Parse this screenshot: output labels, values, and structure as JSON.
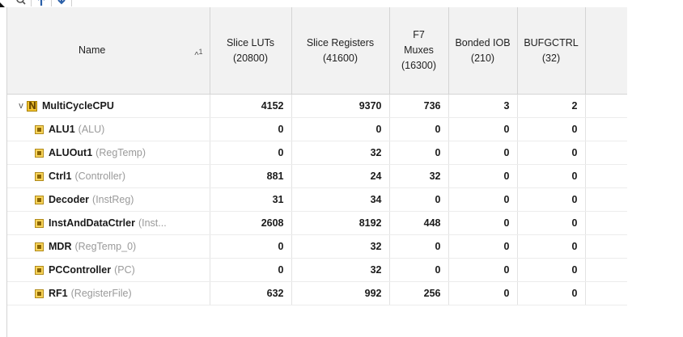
{
  "toolbar": {
    "buttons": [
      {
        "icon": "search-icon"
      },
      {
        "icon": "sort-up-icon"
      },
      {
        "icon": "sort-down-icon"
      }
    ]
  },
  "table": {
    "sort": {
      "direction_symbol": "^",
      "priority": "1"
    },
    "columns": [
      {
        "id": "name",
        "label": "Name",
        "sub": ""
      },
      {
        "id": "lut",
        "label": "Slice LUTs",
        "sub": "(20800)"
      },
      {
        "id": "reg",
        "label": "Slice Registers",
        "sub": "(41600)"
      },
      {
        "id": "f7",
        "label": "F7 Muxes",
        "sub": "(16300)"
      },
      {
        "id": "iob",
        "label": "Bonded IOB",
        "sub": "(210)"
      },
      {
        "id": "bufg",
        "label": "BUFGCTRL",
        "sub": "(32)"
      }
    ],
    "top": {
      "expander": "v",
      "instance": "MultiCycleCPU",
      "module": "",
      "values": [
        "4152",
        "9370",
        "736",
        "3",
        "2"
      ]
    },
    "rows": [
      {
        "instance": "ALU1",
        "module": "(ALU)",
        "values": [
          "0",
          "0",
          "0",
          "0",
          "0"
        ]
      },
      {
        "instance": "ALUOut1",
        "module": "(RegTemp)",
        "values": [
          "0",
          "32",
          "0",
          "0",
          "0"
        ]
      },
      {
        "instance": "Ctrl1",
        "module": "(Controller)",
        "values": [
          "881",
          "24",
          "32",
          "0",
          "0"
        ]
      },
      {
        "instance": "Decoder",
        "module": "(InstReg)",
        "values": [
          "31",
          "34",
          "0",
          "0",
          "0"
        ]
      },
      {
        "instance": "InstAndDataCtrler",
        "module": "(Inst...",
        "values": [
          "2608",
          "8192",
          "448",
          "0",
          "0"
        ]
      },
      {
        "instance": "MDR",
        "module": "(RegTemp_0)",
        "values": [
          "0",
          "32",
          "0",
          "0",
          "0"
        ]
      },
      {
        "instance": "PCController",
        "module": "(PC)",
        "values": [
          "0",
          "32",
          "0",
          "0",
          "0"
        ]
      },
      {
        "instance": "RF1",
        "module": "(RegisterFile)",
        "values": [
          "632",
          "992",
          "256",
          "0",
          "0"
        ]
      }
    ]
  }
}
